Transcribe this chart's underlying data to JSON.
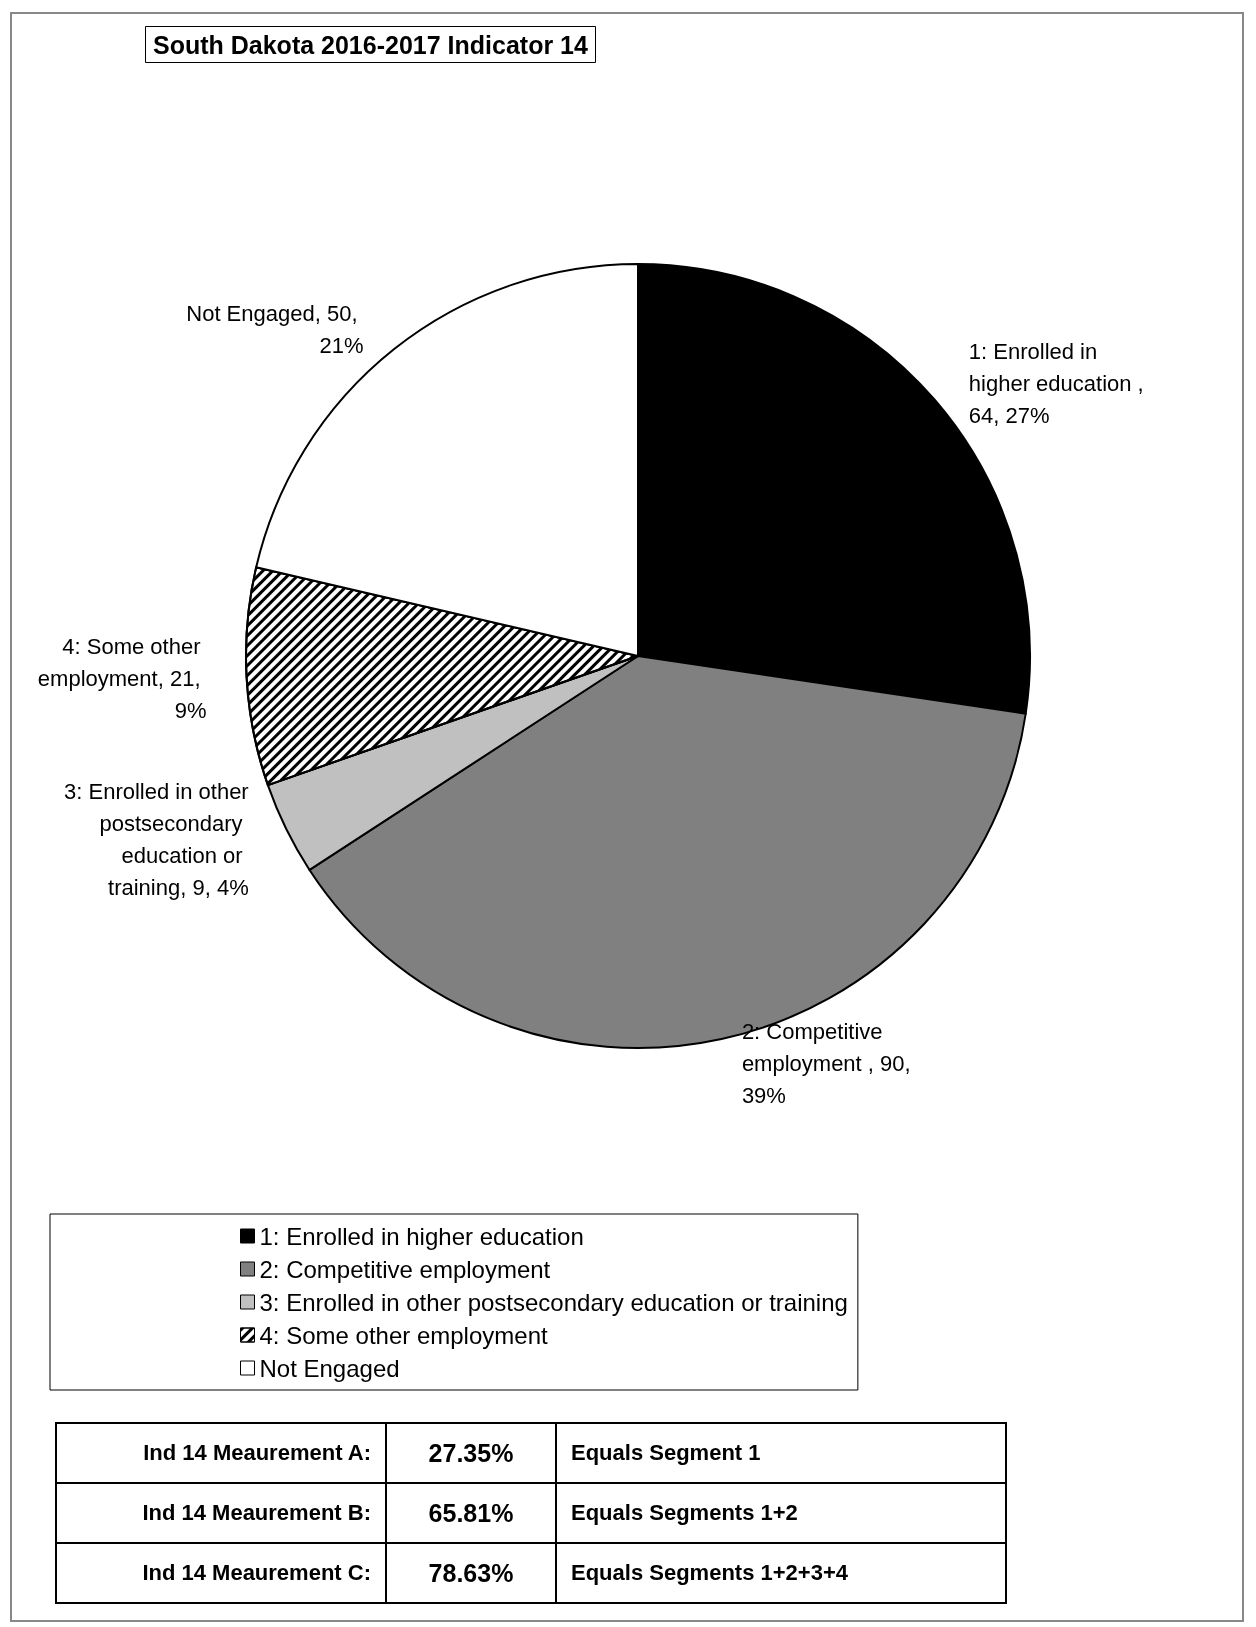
{
  "chart_data": {
    "type": "pie",
    "title": "South Dakota 2016-2017 Indicator 14",
    "categories": [
      "1: Enrolled in higher education",
      "2: Competitive employment",
      "3: Enrolled in other postsecondary education or training",
      "4: Some other employment",
      "Not Engaged"
    ],
    "values": [
      64,
      90,
      9,
      21,
      50
    ],
    "colors": [
      "#000000",
      "#808080",
      "#c0c0c0",
      "#ffffff",
      "#ffffff"
    ],
    "value_labels": [
      "1: Enrolled in higher education , 64, 27%",
      "2: Competitive employment , 90, 39%",
      "3: Enrolled in other postsecondary education or training, 9, 4%",
      "4: Some other employment, 21, 9%",
      "Not Engaged, 50, 21%"
    ],
    "legend": "bottom",
    "annotations": [
      "Ind 14 Meaurement A:",
      "27.35%",
      "Equals Segment 1",
      "Ind 14 Meaurement B:",
      "65.81%",
      "Equals Segments 1+2",
      "Ind 14 Meaurement C:",
      "78.63%",
      "Equals Segments  1+2+3+4"
    ]
  }
}
